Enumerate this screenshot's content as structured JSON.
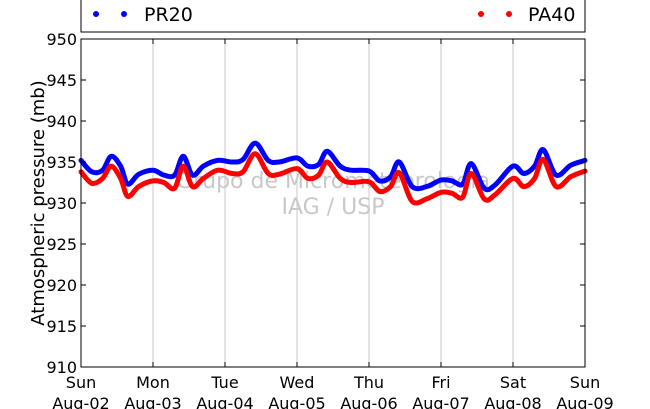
{
  "chart_data": {
    "type": "line",
    "ylabel": "Atmospheric pressure (mb)",
    "ylim": [
      910,
      950
    ],
    "yticks": [
      910,
      915,
      920,
      925,
      930,
      935,
      940,
      945,
      950
    ],
    "xlim": [
      0,
      7
    ],
    "xticks": [
      {
        "x": 0,
        "day": "Sun",
        "date": "Aug-02"
      },
      {
        "x": 1,
        "day": "Mon",
        "date": "Aug-03"
      },
      {
        "x": 2,
        "day": "Tue",
        "date": "Aug-04"
      },
      {
        "x": 3,
        "day": "Wed",
        "date": "Aug-05"
      },
      {
        "x": 4,
        "day": "Thu",
        "date": "Aug-06"
      },
      {
        "x": 5,
        "day": "Fri",
        "date": "Aug-07"
      },
      {
        "x": 6,
        "day": "Sat",
        "date": "Aug-08"
      },
      {
        "x": 7,
        "day": "Sun",
        "date": "Aug-09"
      }
    ],
    "grid": "vertical",
    "legend_position": "top",
    "watermark": [
      "Grupo de Micrometeorologia",
      "IAG / USP"
    ],
    "series": [
      {
        "name": "PR20",
        "color": "#0000ff",
        "x": [
          0,
          0.15,
          0.3,
          0.42,
          0.55,
          0.65,
          0.8,
          1.0,
          1.15,
          1.3,
          1.42,
          1.55,
          1.7,
          1.9,
          2.1,
          2.25,
          2.42,
          2.6,
          2.75,
          3.0,
          3.15,
          3.3,
          3.42,
          3.6,
          3.75,
          4.0,
          4.15,
          4.3,
          4.42,
          4.6,
          4.8,
          5.0,
          5.15,
          5.3,
          5.42,
          5.6,
          5.75,
          6.0,
          6.15,
          6.3,
          6.42,
          6.6,
          6.8,
          7.0
        ],
        "y": [
          935.2,
          933.8,
          934.0,
          935.7,
          934.5,
          932.3,
          933.5,
          934.0,
          933.4,
          933.4,
          935.7,
          933.4,
          934.5,
          935.2,
          935.0,
          935.3,
          937.3,
          935.2,
          935.0,
          935.5,
          934.5,
          934.7,
          936.3,
          934.5,
          934.0,
          933.9,
          932.7,
          933.2,
          935.0,
          932.0,
          932.0,
          932.8,
          932.7,
          932.3,
          934.8,
          931.8,
          932.2,
          934.5,
          933.6,
          934.5,
          936.5,
          933.4,
          934.6,
          935.2
        ]
      },
      {
        "name": "PA40",
        "color": "#ff0000",
        "x": [
          0,
          0.15,
          0.3,
          0.42,
          0.55,
          0.65,
          0.8,
          1.0,
          1.15,
          1.3,
          1.42,
          1.55,
          1.7,
          1.9,
          2.1,
          2.25,
          2.42,
          2.6,
          2.75,
          3.0,
          3.15,
          3.3,
          3.42,
          3.6,
          3.75,
          4.0,
          4.15,
          4.3,
          4.42,
          4.6,
          4.8,
          5.0,
          5.15,
          5.3,
          5.42,
          5.6,
          5.75,
          6.0,
          6.15,
          6.3,
          6.42,
          6.6,
          6.8,
          7.0
        ],
        "y": [
          933.8,
          932.4,
          933.0,
          934.5,
          933.0,
          930.8,
          932.0,
          932.7,
          932.5,
          931.8,
          934.5,
          932.0,
          933.0,
          934.0,
          933.6,
          933.8,
          936.0,
          933.6,
          933.5,
          934.2,
          933.0,
          933.4,
          935.0,
          933.0,
          932.5,
          932.6,
          931.4,
          932.0,
          933.7,
          930.2,
          930.5,
          931.3,
          931.2,
          930.7,
          933.6,
          930.5,
          931.0,
          933.0,
          932.0,
          933.0,
          935.3,
          932.0,
          933.2,
          933.9
        ]
      }
    ]
  }
}
